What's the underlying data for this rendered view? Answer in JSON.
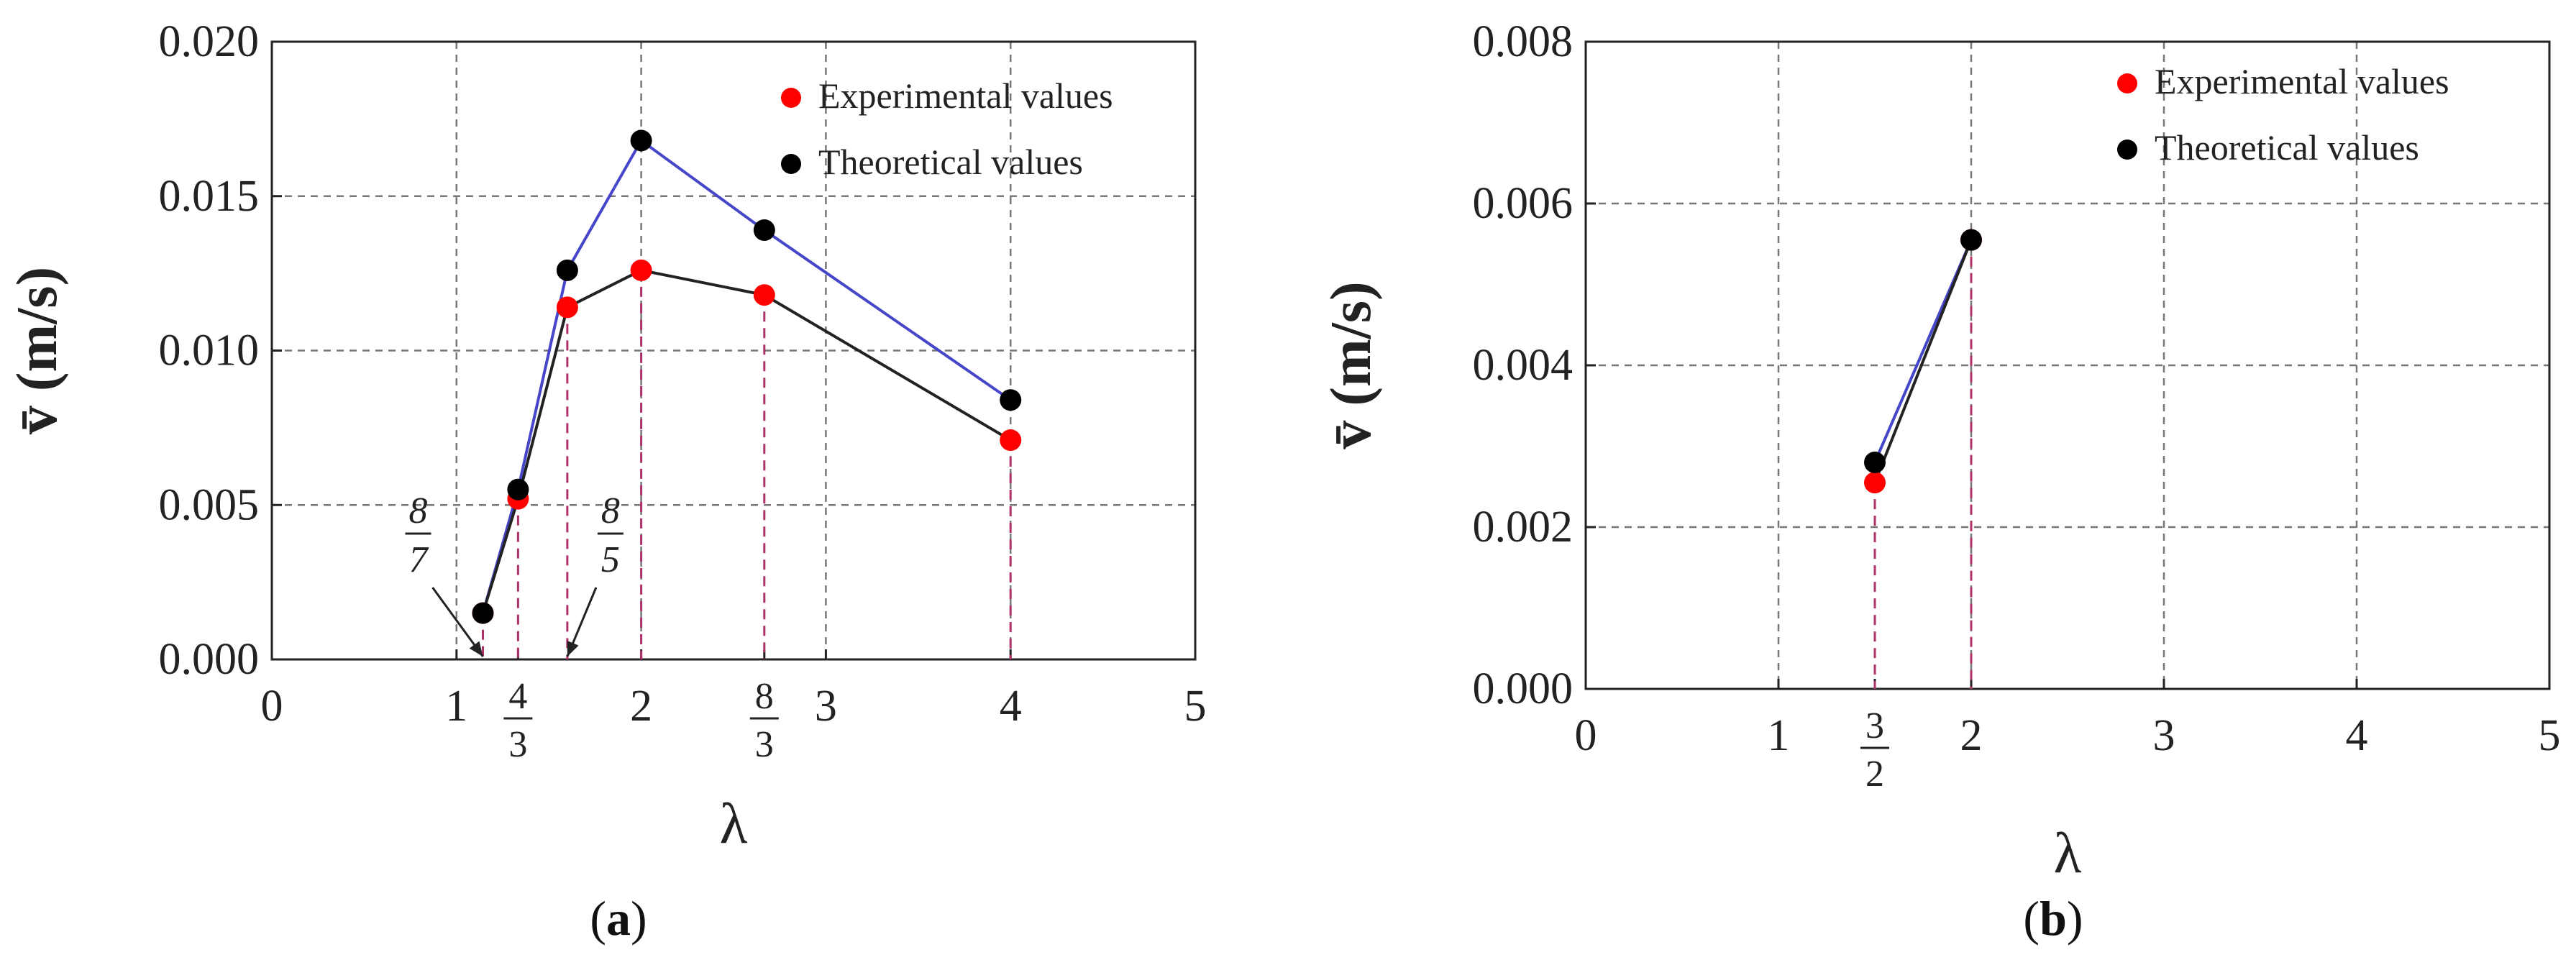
{
  "chart_data": [
    {
      "type": "line",
      "panel_label": "a",
      "xlabel": "λ",
      "ylabel": "v̄ (m/s)",
      "xlim": [
        0,
        5
      ],
      "ylim": [
        0,
        0.02
      ],
      "x_ticks": [
        {
          "value": 0,
          "label": "0"
        },
        {
          "value": 1,
          "label": "1"
        },
        {
          "value": 2,
          "label": "2"
        },
        {
          "value": 3,
          "label": "3"
        },
        {
          "value": 4,
          "label": "4"
        },
        {
          "value": 5,
          "label": "5"
        }
      ],
      "x_fraction_ticks": [
        {
          "value": 1.3333,
          "num": "4",
          "den": "3"
        },
        {
          "value": 2.6667,
          "num": "8",
          "den": "3"
        }
      ],
      "annotations": [
        {
          "value": 1.1429,
          "num": "8",
          "den": "7"
        },
        {
          "value": 1.6,
          "num": "8",
          "den": "5"
        }
      ],
      "y_ticks": [
        {
          "value": 0.0,
          "label": "0.000"
        },
        {
          "value": 0.005,
          "label": "0.005"
        },
        {
          "value": 0.01,
          "label": "0.010"
        },
        {
          "value": 0.015,
          "label": "0.015"
        },
        {
          "value": 0.02,
          "label": "0.020"
        }
      ],
      "grid": true,
      "legend_position": "top-right",
      "series": [
        {
          "name": "Experimental values",
          "marker_color": "#ff0000",
          "line_color": "#222222",
          "x": [
            1.1429,
            1.3333,
            1.6,
            2.0,
            2.6667,
            4.0
          ],
          "y": [
            0.0015,
            0.0052,
            0.0114,
            0.0126,
            0.0118,
            0.0071
          ]
        },
        {
          "name": "Theoretical values",
          "marker_color": "#000000",
          "line_color": "#4646c8",
          "x": [
            1.1429,
            1.3333,
            1.6,
            2.0,
            2.6667,
            4.0
          ],
          "y": [
            0.0015,
            0.0055,
            0.0126,
            0.0168,
            0.0139,
            0.0084
          ]
        }
      ]
    },
    {
      "type": "line",
      "panel_label": "b",
      "xlabel": "λ",
      "ylabel": "v̄ (m/s)",
      "xlim": [
        0,
        5
      ],
      "ylim": [
        0,
        0.008
      ],
      "x_ticks": [
        {
          "value": 0,
          "label": "0"
        },
        {
          "value": 1,
          "label": "1"
        },
        {
          "value": 2,
          "label": "2"
        },
        {
          "value": 3,
          "label": "3"
        },
        {
          "value": 4,
          "label": "4"
        },
        {
          "value": 5,
          "label": "5"
        }
      ],
      "x_fraction_ticks": [
        {
          "value": 1.5,
          "num": "3",
          "den": "2"
        }
      ],
      "annotations": [],
      "y_ticks": [
        {
          "value": 0.0,
          "label": "0.000"
        },
        {
          "value": 0.002,
          "label": "0.002"
        },
        {
          "value": 0.004,
          "label": "0.004"
        },
        {
          "value": 0.006,
          "label": "0.006"
        },
        {
          "value": 0.008,
          "label": "0.008"
        }
      ],
      "grid": true,
      "legend_position": "top-right",
      "series": [
        {
          "name": "Experimental values",
          "marker_color": "#ff0000",
          "line_color": "#222222",
          "x": [
            1.5,
            2.0
          ],
          "y": [
            0.00255,
            0.00555
          ]
        },
        {
          "name": "Theoretical values",
          "marker_color": "#000000",
          "line_color": "#4646c8",
          "x": [
            1.5,
            2.0
          ],
          "y": [
            0.0028,
            0.00555
          ]
        }
      ]
    }
  ]
}
